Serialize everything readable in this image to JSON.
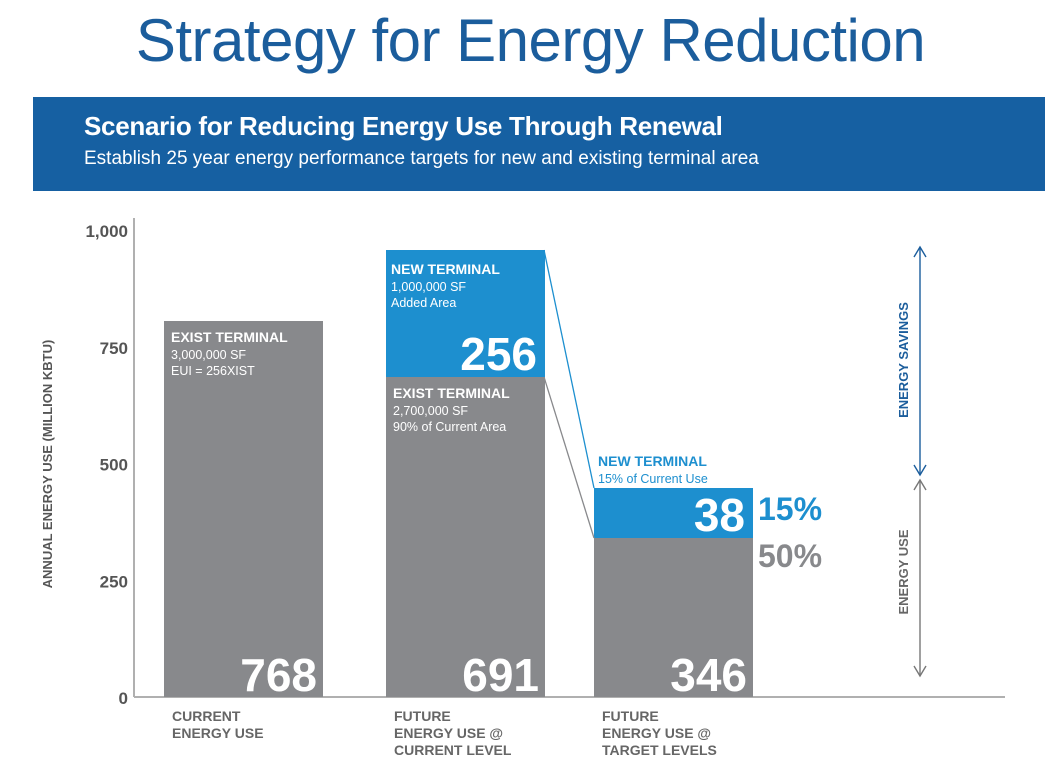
{
  "title": "Strategy for Energy Reduction",
  "banner": {
    "heading": "Scenario for Reducing Energy Use Through Renewal",
    "subheading": "Establish 25 year energy performance targets for new and existing terminal area"
  },
  "colors": {
    "title": "#1b5d9c",
    "banner": "#1660a2",
    "existing": "#88898c",
    "new": "#1d8fcf",
    "axis": "#b0b0b0"
  },
  "chart_data": {
    "type": "bar",
    "stacked": true,
    "title": "Strategy for Energy Reduction",
    "ylabel": "ANNUAL ENERGY USE (MILLION KBTU)",
    "xlabel": "",
    "ylim": [
      0,
      1000
    ],
    "yticks": [
      "0",
      "250",
      "500",
      "750",
      "1,000"
    ],
    "ytick_values": [
      0,
      250,
      500,
      750,
      1000
    ],
    "grid": false,
    "categories": [
      [
        "CURRENT",
        "ENERGY USE"
      ],
      [
        "FUTURE",
        "ENERGY USE @",
        "CURRENT LEVEL"
      ],
      [
        "FUTURE",
        "ENERGY USE @",
        "TARGET LEVELS"
      ]
    ],
    "series": [
      {
        "name": "Existing Terminal",
        "values": [
          768,
          691,
          346
        ],
        "value_labels": [
          "768",
          "691",
          "346"
        ],
        "segment_labels": [
          {
            "heading": "EXIST TERMINAL",
            "lines": [
              "3,000,000 SF",
              "EUI = 256XIST"
            ]
          },
          {
            "heading": "EXIST TERMINAL",
            "lines": [
              "2,700,000 SF",
              "90% of Current Area"
            ]
          },
          null
        ]
      },
      {
        "name": "New Terminal",
        "values": [
          0,
          256,
          38
        ],
        "value_labels": [
          "",
          "256",
          "38"
        ],
        "segment_labels": [
          null,
          {
            "heading": "NEW TERMINAL",
            "lines": [
              "1,000,000 SF",
              "Added Area"
            ]
          },
          {
            "heading": "NEW TERMINAL",
            "lines": [
              "15% of Current Use"
            ]
          }
        ]
      }
    ],
    "annotations": {
      "percent_new": "15%",
      "percent_existing": "50%",
      "energy_savings_label": "ENERGY SAVINGS",
      "energy_use_label": "ENERGY USE"
    }
  }
}
